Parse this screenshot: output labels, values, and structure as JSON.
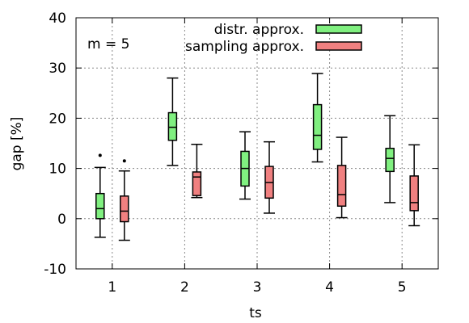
{
  "chart_data": {
    "type": "box",
    "xlabel": "ts",
    "ylabel": "gap [%]",
    "annotation": "m = 5",
    "ylim": [
      -10,
      40
    ],
    "yticks": [
      -10,
      0,
      10,
      20,
      30,
      40
    ],
    "categories": [
      "1",
      "2",
      "3",
      "4",
      "5"
    ],
    "grid": true,
    "legend_position": "top-right",
    "series": [
      {
        "name": "distr. approx.",
        "color": "#80f080",
        "boxes": [
          {
            "whisker_low": -3.7,
            "q1": 0,
            "median": 2,
            "q3": 5,
            "whisker_high": 10.2,
            "outliers": [
              12.6
            ]
          },
          {
            "whisker_low": 10.6,
            "q1": 15.6,
            "median": 18.2,
            "q3": 21.1,
            "whisker_high": 28,
            "outliers": []
          },
          {
            "whisker_low": 3.9,
            "q1": 6.5,
            "median": 10,
            "q3": 13.4,
            "whisker_high": 17.3,
            "outliers": []
          },
          {
            "whisker_low": 11.3,
            "q1": 13.8,
            "median": 16.6,
            "q3": 22.7,
            "whisker_high": 28.9,
            "outliers": []
          },
          {
            "whisker_low": 3.2,
            "q1": 9.4,
            "median": 12,
            "q3": 14,
            "whisker_high": 20.5,
            "outliers": []
          }
        ]
      },
      {
        "name": "sampling approx.",
        "color": "#f08080",
        "boxes": [
          {
            "whisker_low": -4.3,
            "q1": -0.6,
            "median": 1.5,
            "q3": 4.5,
            "whisker_high": 9.5,
            "outliers": [
              11.5
            ]
          },
          {
            "whisker_low": 4.2,
            "q1": 4.6,
            "median": 8.3,
            "q3": 9.3,
            "whisker_high": 14.8,
            "outliers": []
          },
          {
            "whisker_low": 1.1,
            "q1": 4.1,
            "median": 7.2,
            "q3": 10.4,
            "whisker_high": 15.3,
            "outliers": []
          },
          {
            "whisker_low": 0.2,
            "q1": 2.5,
            "median": 4.8,
            "q3": 10.6,
            "whisker_high": 16.2,
            "outliers": []
          },
          {
            "whisker_low": -1.4,
            "q1": 1.6,
            "median": 3.2,
            "q3": 8.5,
            "whisker_high": 14.7,
            "outliers": []
          }
        ]
      }
    ]
  }
}
